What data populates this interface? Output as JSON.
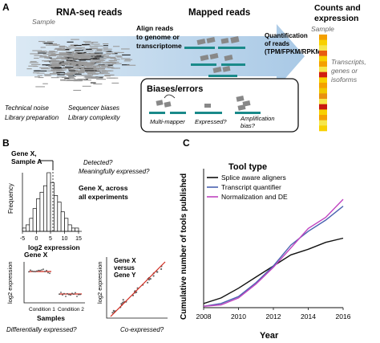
{
  "panelA": {
    "label": "A",
    "rnaseq_title": "RNA-seq reads",
    "sample": "Sample",
    "mapped_title": "Mapped reads",
    "align_text": [
      "Align reads",
      "to genome or",
      "transcriptome"
    ],
    "quant_text": [
      "Quantification",
      "of reads",
      "(TPM/FPKM/RPKM)"
    ],
    "counts_title": [
      "Counts and",
      "expression"
    ],
    "counts_sample": "Sample",
    "counts_side": [
      "Transcripts,",
      "genes or",
      "isoforms"
    ],
    "notes_left": [
      "Technical noise",
      "Library preparation"
    ],
    "notes_right": [
      "Sequencer biases",
      "Library complexity"
    ],
    "biases_title": "Biases/errors",
    "bias_labels": [
      "Multi-mapper",
      "Expressed?",
      "Amplification",
      "bias?"
    ],
    "heat_colors": [
      "#f4a000",
      "#f8d000",
      "#f6e64a",
      "#e85c10",
      "#f8d000",
      "#f4a000",
      "#f6e64a",
      "#d11f10",
      "#f8d000",
      "#f4a000",
      "#f0c800",
      "#e89010",
      "#f6e64a",
      "#c81810",
      "#f8d000",
      "#f4a000",
      "#f6e64a",
      "#f8d000"
    ]
  },
  "panelB": {
    "label": "B",
    "geneXsampleA": [
      "Gene X,",
      "Sample A"
    ],
    "detected": [
      "Detected?",
      "Meaningfully expressed?"
    ],
    "gene_across": [
      "Gene X, across",
      "all experiments"
    ],
    "freq_label": "Frequency",
    "hist_xlabel": "log2 expression",
    "hist_ticks": [
      "-5",
      "0",
      "5",
      "10",
      "15"
    ],
    "hist_values": [
      1,
      2,
      4,
      7,
      10,
      12,
      14,
      18,
      15,
      11,
      9,
      6,
      4,
      2,
      1,
      1
    ],
    "hist_xlim": [
      -5,
      15
    ],
    "geneX": "Gene X",
    "strip_ylabel": "log2 expression",
    "strip_conditions": [
      "Condition 1",
      "Condition 2"
    ],
    "samples_label": "Samples",
    "diff_q": "Differentially expressed?",
    "scatter_title": [
      "Gene X",
      "versus",
      "Gene Y"
    ],
    "scatter_ylabel": "log2 expression",
    "coexp_q": "Co-expressed?"
  },
  "panelC": {
    "label": "C",
    "chart_data": {
      "type": "line",
      "legend_title": "Tool type",
      "xlabel": "Year",
      "ylabel": "Cumulative number of tools published",
      "x": [
        2008,
        2009,
        2010,
        2011,
        2012,
        2013,
        2014,
        2015,
        2016
      ],
      "xticks": [
        "2008",
        "2010",
        "2012",
        "2014",
        "2016"
      ],
      "xlim": [
        2008,
        2016
      ],
      "ylim": [
        0,
        100
      ],
      "series": [
        {
          "name": "Splice aware aligners",
          "color": "#111111",
          "values": [
            3,
            7,
            14,
            22,
            30,
            38,
            42,
            47,
            50
          ]
        },
        {
          "name": "Transcript quantifier",
          "color": "#4a62b0",
          "values": [
            1,
            3,
            8,
            18,
            30,
            45,
            55,
            63,
            73
          ]
        },
        {
          "name": "Normalization and DE",
          "color": "#c044c0",
          "values": [
            1,
            2,
            7,
            17,
            29,
            43,
            57,
            65,
            78
          ]
        }
      ],
      "legend_position": "top-left"
    }
  }
}
